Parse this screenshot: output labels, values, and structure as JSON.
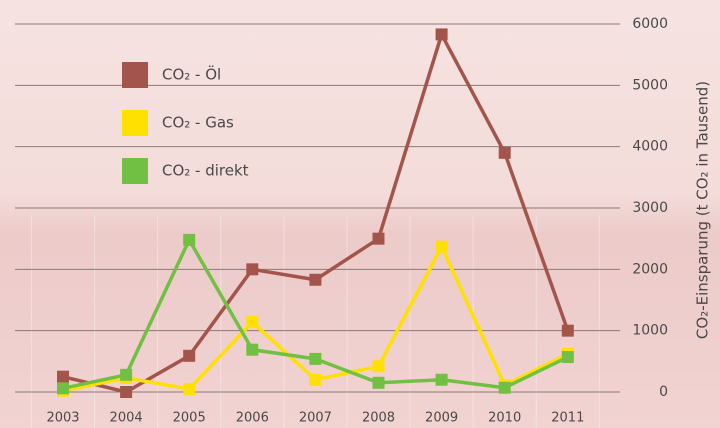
{
  "chart_data": {
    "type": "line",
    "y_label": "CO₂-Einsparung (t CO₂ in Tausend)",
    "categories": [
      "2003",
      "2004",
      "2005",
      "2006",
      "2007",
      "2008",
      "2009",
      "2010",
      "2011"
    ],
    "series": [
      {
        "name": "CO₂ - Öl",
        "color": "#a3554c",
        "values": [
          250,
          0,
          590,
          2000,
          1830,
          2500,
          5830,
          3900,
          1000
        ]
      },
      {
        "name": "CO₂ - Gas",
        "color": "#ffe000",
        "values": [
          20,
          230,
          50,
          1140,
          200,
          420,
          2370,
          110,
          620
        ]
      },
      {
        "name": "CO₂ - direkt",
        "color": "#72c043",
        "values": [
          60,
          280,
          2480,
          690,
          540,
          150,
          200,
          70,
          570
        ]
      }
    ],
    "ylim": [
      0,
      6000
    ],
    "yticks": [
      0,
      1000,
      2000,
      3000,
      4000,
      5000,
      6000
    ],
    "grid": true,
    "legend": "upper left"
  }
}
